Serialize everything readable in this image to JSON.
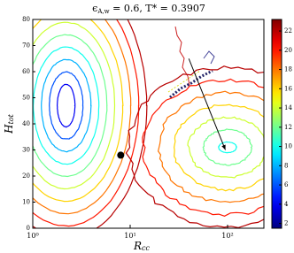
{
  "chart_data": {
    "type": "contour",
    "title": {
      "symbol": "ϵ",
      "subscript": "A,w",
      "text": " = 0.6, T* = 0.3907"
    },
    "x_label": {
      "symbol": "R",
      "subscript": "cc"
    },
    "y_label": {
      "symbol": "H",
      "subscript": "tot"
    },
    "xscale": "log",
    "xlim": [
      1,
      236
    ],
    "xticks": [
      {
        "value": 1,
        "label": "10⁰"
      },
      {
        "value": 10,
        "label": "10¹"
      },
      {
        "value": 100,
        "label": "10²"
      }
    ],
    "ylim": [
      0,
      80
    ],
    "yticks": [
      0,
      10,
      20,
      30,
      40,
      50,
      60,
      70,
      80
    ],
    "contour_sets": [
      {
        "center_x": 2.2,
        "center_y": 47,
        "levels": [
          4,
          6,
          8,
          10,
          12,
          14,
          16,
          18,
          20,
          22
        ]
      },
      {
        "center_x": 100,
        "center_y": 31,
        "levels": [
          10,
          12,
          14,
          16,
          18,
          20,
          22
        ]
      }
    ],
    "colorbar": {
      "colormap": "jet",
      "lim": [
        1.5,
        23.2
      ],
      "ticks": [
        2,
        4,
        6,
        8,
        10,
        12,
        14,
        16,
        18,
        20,
        22
      ]
    },
    "marker": {
      "x": 8,
      "y": 28,
      "color": "#000000"
    },
    "arrow": {
      "x": [
        40,
        95
      ],
      "y": [
        65,
        30
      ],
      "color": "#000000"
    }
  }
}
